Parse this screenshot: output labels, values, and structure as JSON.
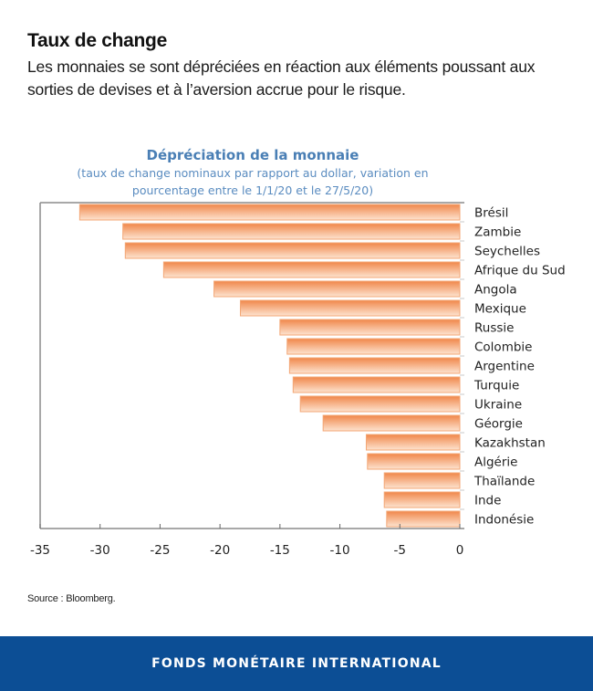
{
  "header": {
    "title": "Taux de change",
    "subtitle": "Les monnaies se sont dépréciées en réaction aux éléments poussant aux sorties de devises et à l’aversion accrue pour le risque."
  },
  "chart_data": {
    "type": "bar",
    "orientation": "horizontal",
    "title": "Dépréciation de la monnaie",
    "subtitle_line1": "(taux de change nominaux par rapport au dollar, variation en",
    "subtitle_line2": "pourcentage entre le 1/1/20 et le 27/5/20)",
    "xlabel": "",
    "ylabel": "",
    "xlim": [
      -35,
      0
    ],
    "x_ticks": [
      -35,
      -30,
      -25,
      -20,
      -15,
      -10,
      -5,
      0
    ],
    "x_tick_labels": [
      "-35",
      "-30",
      "-25",
      "-20",
      "-15",
      "-10",
      "-5",
      "0"
    ],
    "grid": false,
    "legend": "none",
    "category_axis_side": "right",
    "categories": [
      "Brésil",
      "Zambie",
      "Seychelles",
      "Afrique du Sud",
      "Angola",
      "Mexique",
      "Russie",
      "Colombie",
      "Argentine",
      "Turquie",
      "Ukraine",
      "Géorgie",
      "Kazakhstan",
      "Algérie",
      "Thaïlande",
      "Inde",
      "Indonésie"
    ],
    "values": [
      -31.7,
      -28.1,
      -27.9,
      -24.7,
      -20.5,
      -18.3,
      -15.0,
      -14.4,
      -14.2,
      -13.9,
      -13.3,
      -11.4,
      -7.8,
      -7.7,
      -6.3,
      -6.3,
      -6.1
    ],
    "colors": {
      "bar_top": "#f0874a",
      "bar_bottom": "#fde3d0",
      "bar_border": "#f3a776",
      "axis": "#8c8c8c",
      "title": "#4a7fb5"
    }
  },
  "source": "Source : Bloomberg.",
  "footer": {
    "label": "FONDS MONÉTAIRE INTERNATIONAL",
    "color": "#0c4e95"
  }
}
